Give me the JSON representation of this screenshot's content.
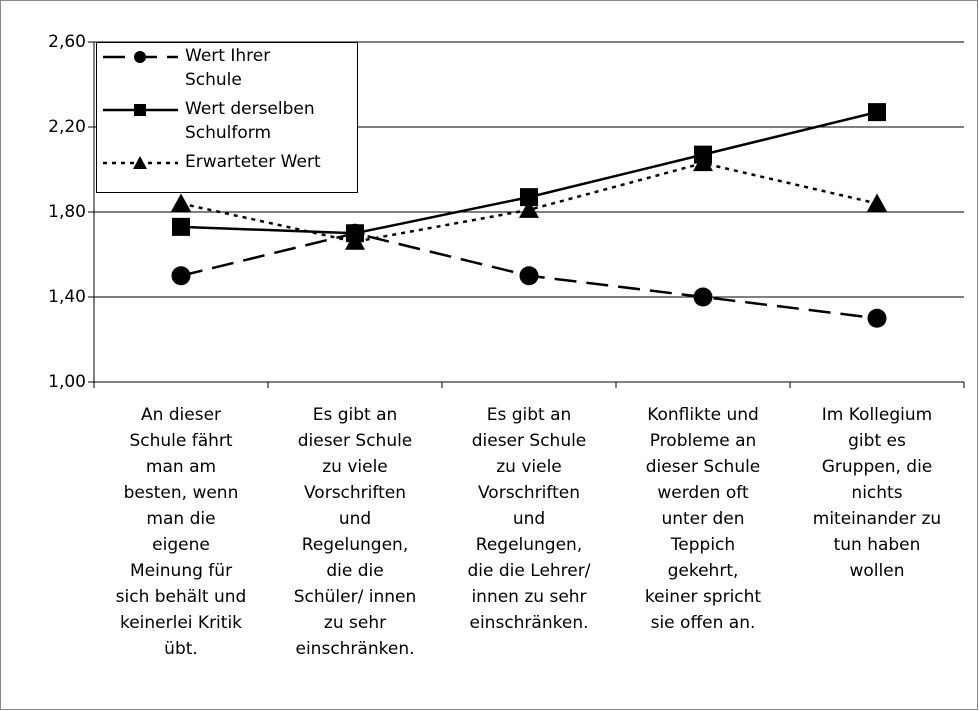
{
  "chart_data": {
    "type": "line",
    "categories": [
      "An dieser\nSchule fährt\nman am\nbesten, wenn\nman die\neigene\nMeinung für\nsich behält und\nkeinerlei Kritik\nübt.",
      "Es gibt an\ndieser Schule\nzu viele\nVorschriften\nund\nRegelungen,\ndie die\nSchüler/ innen\nzu sehr\neinschränken.",
      "Es gibt an\ndieser Schule\nzu viele\nVorschriften\nund\nRegelungen,\ndie die Lehrer/\ninnen zu sehr\neinschränken.",
      "Konflikte und\nProbleme an\ndieser Schule\nwerden oft\nunter den\nTeppich\ngekehrt,\nkeiner spricht\nsie offen an.",
      "Im Kollegium\ngibt es\nGruppen, die\nnichts\nmiteinander zu\ntun haben\nwollen"
    ],
    "series": [
      {
        "name": "Wert Ihrer\nSchule",
        "color": "#000000",
        "line_style": "dashed",
        "marker": "circle",
        "values": [
          1.5,
          1.7,
          1.5,
          1.4,
          1.3
        ]
      },
      {
        "name": "Wert derselben\nSchulform",
        "color": "#000000",
        "line_style": "solid",
        "marker": "square",
        "values": [
          1.73,
          1.7,
          1.87,
          2.07,
          2.27
        ]
      },
      {
        "name": "Erwarteter Wert",
        "color": "#000000",
        "line_style": "dotted",
        "marker": "triangle",
        "values": [
          1.84,
          1.66,
          1.81,
          2.03,
          1.84
        ]
      }
    ],
    "ylim": [
      1.0,
      2.6
    ],
    "yticks": [
      {
        "value": 1.0,
        "label": "1,00"
      },
      {
        "value": 1.4,
        "label": "1,40"
      },
      {
        "value": 1.8,
        "label": "1,80"
      },
      {
        "value": 2.2,
        "label": "2,20"
      },
      {
        "value": 2.6,
        "label": "2,60"
      }
    ],
    "grid": true,
    "legend": "top-left"
  }
}
